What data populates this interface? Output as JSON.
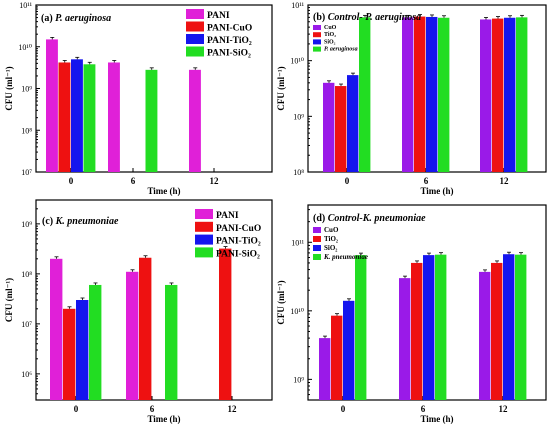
{
  "colors": {
    "magenta": "#E020D8",
    "red": "#EE1111",
    "blue": "#1515EE",
    "green": "#22DD22",
    "brown": "#A33A12",
    "purple": "#9A1AE8"
  },
  "chart_data": [
    {
      "type": "bar",
      "panel_label": "(a)",
      "title": "P. aeruginosa",
      "xlabel": "Time (h)",
      "ylabel": "CFU (ml⁻¹)",
      "categories": [
        "0",
        "6",
        "12"
      ],
      "yscale": "log",
      "ylim": [
        10000000,
        100000000000
      ],
      "yticks": [
        {
          "value": 10000000,
          "label": "10⁷"
        },
        {
          "value": 100000000,
          "label": "10⁸"
        },
        {
          "value": 1000000000,
          "label": "10⁹"
        },
        {
          "value": 10000000000,
          "label": "10¹⁰"
        },
        {
          "value": 100000000000,
          "label": "10¹¹"
        }
      ],
      "legend_position": "top-right",
      "series": [
        {
          "name": "PANI",
          "color": "#E020D8",
          "values": [
            15000000000,
            4200000000,
            2800000000
          ]
        },
        {
          "name": "PANI-CuO",
          "color": "#EE1111",
          "values": [
            4200000000,
            null,
            null
          ]
        },
        {
          "name": "PANI-TiO₂",
          "color": "#1515EE",
          "values": [
            5000000000,
            null,
            null
          ]
        },
        {
          "name": "PANI-SiO₂",
          "color": "#22DD22",
          "values": [
            3800000000,
            2800000000,
            null
          ]
        }
      ]
    },
    {
      "type": "bar",
      "panel_label": "(b)",
      "title": "Control- P. aeruginosa",
      "xlabel": "Time (h)",
      "ylabel": "CFU (ml⁻¹)",
      "categories": [
        "0",
        "6",
        "12"
      ],
      "yscale": "log",
      "ylim": [
        100000000,
        100000000000
      ],
      "yticks": [
        {
          "value": 100000000,
          "label": "10⁸"
        },
        {
          "value": 1000000000,
          "label": "10⁹"
        },
        {
          "value": 10000000000,
          "label": "10¹⁰"
        },
        {
          "value": 100000000000,
          "label": "10¹¹"
        }
      ],
      "legend_position": "top-left",
      "series": [
        {
          "name": "CuO",
          "color": "#9A1AE8",
          "values": [
            4000000000,
            60000000000,
            55000000000
          ]
        },
        {
          "name": "TiO₂",
          "color": "#EE1111",
          "values": [
            3500000000,
            62000000000,
            57000000000
          ]
        },
        {
          "name": "SiO₂",
          "color": "#1515EE",
          "values": [
            5500000000,
            61000000000,
            59000000000
          ]
        },
        {
          "name": "P. aeruginosa",
          "color": "#22DD22",
          "values": [
            60000000000,
            59000000000,
            60000000000
          ]
        }
      ]
    },
    {
      "type": "bar",
      "panel_label": "(c)",
      "title": "K. pneumoniae",
      "xlabel": "Time (h)",
      "ylabel": "CFU (ml⁻¹)",
      "categories": [
        "0",
        "6",
        "12"
      ],
      "yscale": "log",
      "ylim": [
        300000,
        3000000000
      ],
      "yticks": [
        {
          "value": 1000000,
          "label": "10⁶"
        },
        {
          "value": 10000000,
          "label": "10⁷"
        },
        {
          "value": 100000000,
          "label": "10⁸"
        },
        {
          "value": 1000000000,
          "label": "10⁹"
        }
      ],
      "legend_position": "top-right",
      "series": [
        {
          "name": "PANI",
          "color": "#E020D8",
          "values": [
            200000000,
            110000000,
            null
          ]
        },
        {
          "name": "PANI-CuO",
          "color": "#EE1111",
          "values": [
            20000000,
            210000000,
            320000000
          ]
        },
        {
          "name": "PANI-TiO₂",
          "color": "#1515EE",
          "values": [
            30000000,
            null,
            null
          ]
        },
        {
          "name": "PANI-SiO₂",
          "color": "#22DD22",
          "values": [
            60000000,
            60000000,
            null
          ]
        }
      ]
    },
    {
      "type": "bar",
      "panel_label": "(d)",
      "title": "Control-K. pneumoniae",
      "xlabel": "Time (h)",
      "ylabel": "CFU (ml⁻¹)",
      "categories": [
        "0",
        "6",
        "12"
      ],
      "yscale": "log",
      "ylim": [
        500000000,
        350000000000
      ],
      "yticks": [
        {
          "value": 1000000000,
          "label": "10⁹"
        },
        {
          "value": 10000000000,
          "label": "10¹⁰"
        },
        {
          "value": 100000000000,
          "label": "10¹¹"
        }
      ],
      "legend_position": "top-left",
      "series": [
        {
          "name": "CuO",
          "color": "#9A1AE8",
          "values": [
            4000000000,
            30000000000,
            37000000000
          ]
        },
        {
          "name": "TiO₂",
          "color": "#EE1111",
          "values": [
            8500000000,
            50000000000,
            50000000000
          ]
        },
        {
          "name": "SiO₂",
          "color": "#1515EE",
          "values": [
            14000000000,
            65000000000,
            67000000000
          ]
        },
        {
          "name": "K. pneumoniae",
          "color": "#22DD22",
          "values": [
            65000000000,
            66000000000,
            66000000000
          ]
        }
      ]
    }
  ]
}
